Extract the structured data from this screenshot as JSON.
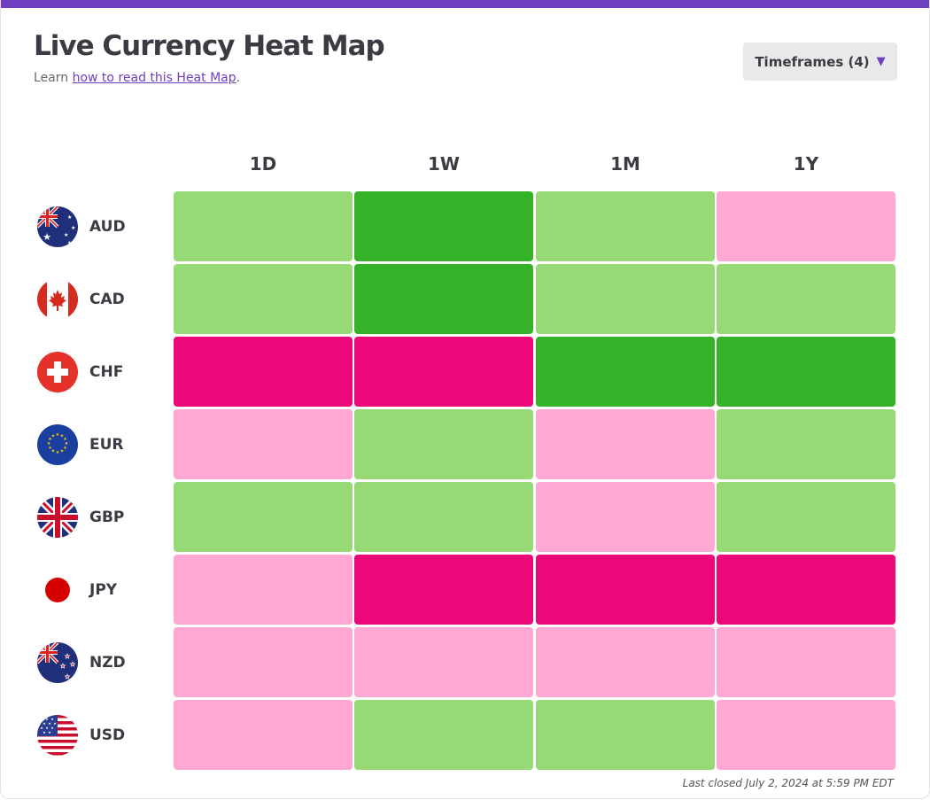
{
  "header": {
    "title": "Live Currency Heat Map",
    "learn_prefix": "Learn ",
    "learn_link": "how to read this Heat Map",
    "learn_suffix": "."
  },
  "timeframes_button": {
    "label": "Timeframes (4)",
    "icon": "caret-down-icon"
  },
  "colors": {
    "strong_up": "#36b229",
    "up": "#97da75",
    "down": "#ffa8d4",
    "strong_down": "#ec0878",
    "accent": "#6f3dbf"
  },
  "chart_data": {
    "type": "heatmap",
    "columns": [
      "1D",
      "1W",
      "1M",
      "1Y"
    ],
    "rows": [
      "AUD",
      "CAD",
      "CHF",
      "EUR",
      "GBP",
      "JPY",
      "NZD",
      "USD"
    ],
    "levels": {
      "strong_up": 2,
      "up": 1,
      "down": -1,
      "strong_down": -2
    },
    "values": [
      [
        1,
        2,
        1,
        -1
      ],
      [
        1,
        2,
        1,
        1
      ],
      [
        -2,
        -2,
        2,
        2
      ],
      [
        -1,
        1,
        -1,
        1
      ],
      [
        1,
        1,
        -1,
        1
      ],
      [
        -1,
        -2,
        -2,
        -2
      ],
      [
        -1,
        -1,
        -1,
        -1
      ],
      [
        -1,
        1,
        1,
        -1
      ]
    ]
  },
  "flags": [
    "australia-flag-icon",
    "canada-flag-icon",
    "switzerland-flag-icon",
    "eu-flag-icon",
    "uk-flag-icon",
    "japan-flag-icon",
    "new-zealand-flag-icon",
    "usa-flag-icon"
  ],
  "footnote": "Last closed July 2, 2024 at 5:59 PM EDT"
}
